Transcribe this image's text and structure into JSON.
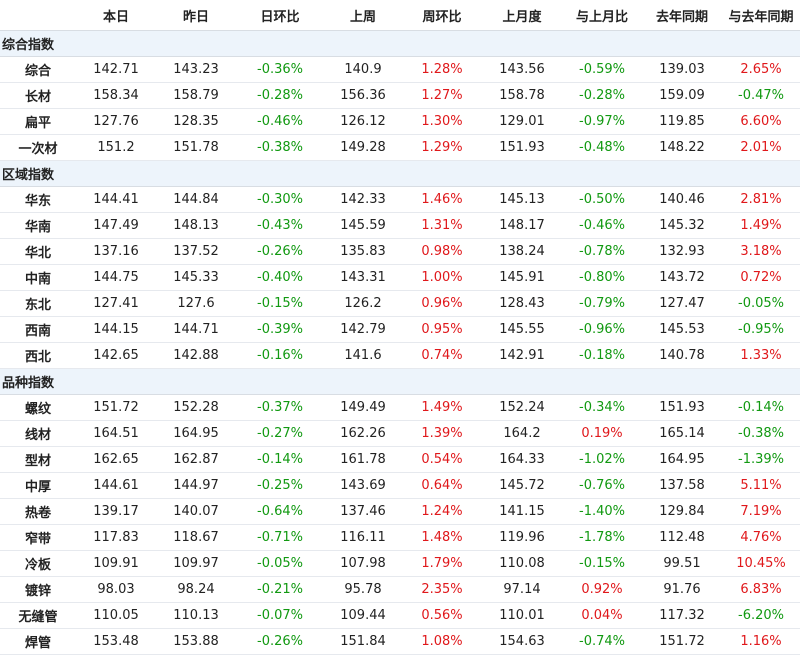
{
  "colors": {
    "up": "#e0181b",
    "down": "#119911",
    "section_bg": "#edf4fb"
  },
  "headers": [
    "",
    "本日",
    "昨日",
    "日环比",
    "上周",
    "周环比",
    "上月度",
    "与上月比",
    "去年同期",
    "与去年同期"
  ],
  "sections": [
    {
      "title": "综合指数",
      "rows": [
        {
          "label": "综合",
          "cells": [
            "142.71",
            "143.23",
            "-0.36%",
            "140.9",
            "1.28%",
            "143.56",
            "-0.59%",
            "139.03",
            "2.65%"
          ]
        },
        {
          "label": "长材",
          "cells": [
            "158.34",
            "158.79",
            "-0.28%",
            "156.36",
            "1.27%",
            "158.78",
            "-0.28%",
            "159.09",
            "-0.47%"
          ]
        },
        {
          "label": "扁平",
          "cells": [
            "127.76",
            "128.35",
            "-0.46%",
            "126.12",
            "1.30%",
            "129.01",
            "-0.97%",
            "119.85",
            "6.60%"
          ]
        },
        {
          "label": "一次材",
          "cells": [
            "151.2",
            "151.78",
            "-0.38%",
            "149.28",
            "1.29%",
            "151.93",
            "-0.48%",
            "148.22",
            "2.01%"
          ]
        }
      ]
    },
    {
      "title": "区域指数",
      "rows": [
        {
          "label": "华东",
          "cells": [
            "144.41",
            "144.84",
            "-0.30%",
            "142.33",
            "1.46%",
            "145.13",
            "-0.50%",
            "140.46",
            "2.81%"
          ]
        },
        {
          "label": "华南",
          "cells": [
            "147.49",
            "148.13",
            "-0.43%",
            "145.59",
            "1.31%",
            "148.17",
            "-0.46%",
            "145.32",
            "1.49%"
          ]
        },
        {
          "label": "华北",
          "cells": [
            "137.16",
            "137.52",
            "-0.26%",
            "135.83",
            "0.98%",
            "138.24",
            "-0.78%",
            "132.93",
            "3.18%"
          ]
        },
        {
          "label": "中南",
          "cells": [
            "144.75",
            "145.33",
            "-0.40%",
            "143.31",
            "1.00%",
            "145.91",
            "-0.80%",
            "143.72",
            "0.72%"
          ]
        },
        {
          "label": "东北",
          "cells": [
            "127.41",
            "127.6",
            "-0.15%",
            "126.2",
            "0.96%",
            "128.43",
            "-0.79%",
            "127.47",
            "-0.05%"
          ]
        },
        {
          "label": "西南",
          "cells": [
            "144.15",
            "144.71",
            "-0.39%",
            "142.79",
            "0.95%",
            "145.55",
            "-0.96%",
            "145.53",
            "-0.95%"
          ]
        },
        {
          "label": "西北",
          "cells": [
            "142.65",
            "142.88",
            "-0.16%",
            "141.6",
            "0.74%",
            "142.91",
            "-0.18%",
            "140.78",
            "1.33%"
          ]
        }
      ]
    },
    {
      "title": "品种指数",
      "rows": [
        {
          "label": "螺纹",
          "cells": [
            "151.72",
            "152.28",
            "-0.37%",
            "149.49",
            "1.49%",
            "152.24",
            "-0.34%",
            "151.93",
            "-0.14%"
          ]
        },
        {
          "label": "线材",
          "cells": [
            "164.51",
            "164.95",
            "-0.27%",
            "162.26",
            "1.39%",
            "164.2",
            "0.19%",
            "165.14",
            "-0.38%"
          ]
        },
        {
          "label": "型材",
          "cells": [
            "162.65",
            "162.87",
            "-0.14%",
            "161.78",
            "0.54%",
            "164.33",
            "-1.02%",
            "164.95",
            "-1.39%"
          ]
        },
        {
          "label": "中厚",
          "cells": [
            "144.61",
            "144.97",
            "-0.25%",
            "143.69",
            "0.64%",
            "145.72",
            "-0.76%",
            "137.58",
            "5.11%"
          ]
        },
        {
          "label": "热卷",
          "cells": [
            "139.17",
            "140.07",
            "-0.64%",
            "137.46",
            "1.24%",
            "141.15",
            "-1.40%",
            "129.84",
            "7.19%"
          ]
        },
        {
          "label": "窄带",
          "cells": [
            "117.83",
            "118.67",
            "-0.71%",
            "116.11",
            "1.48%",
            "119.96",
            "-1.78%",
            "112.48",
            "4.76%"
          ]
        },
        {
          "label": "冷板",
          "cells": [
            "109.91",
            "109.97",
            "-0.05%",
            "107.98",
            "1.79%",
            "110.08",
            "-0.15%",
            "99.51",
            "10.45%"
          ]
        },
        {
          "label": "镀锌",
          "cells": [
            "98.03",
            "98.24",
            "-0.21%",
            "95.78",
            "2.35%",
            "97.14",
            "0.92%",
            "91.76",
            "6.83%"
          ]
        },
        {
          "label": "无缝管",
          "cells": [
            "110.05",
            "110.13",
            "-0.07%",
            "109.44",
            "0.56%",
            "110.01",
            "0.04%",
            "117.32",
            "-6.20%"
          ]
        },
        {
          "label": "焊管",
          "cells": [
            "153.48",
            "153.88",
            "-0.26%",
            "151.84",
            "1.08%",
            "154.63",
            "-0.74%",
            "151.72",
            "1.16%"
          ]
        }
      ]
    }
  ]
}
